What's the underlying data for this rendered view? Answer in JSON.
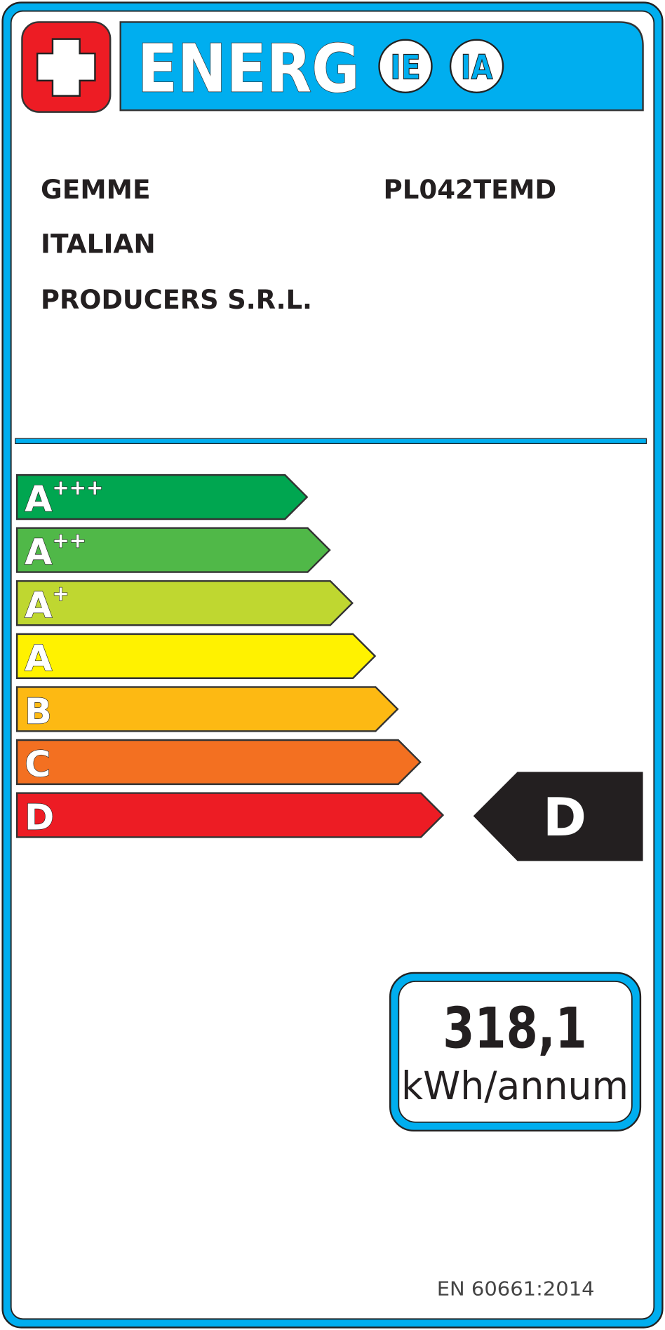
{
  "header": {
    "logo_icon": "swiss-cross-icon",
    "title": "ENERG",
    "badges": [
      "IE",
      "IA"
    ]
  },
  "supplier": {
    "lines": [
      "GEMME",
      "ITALIAN",
      "PRODUCERS S.R.L."
    ],
    "model": "PL042TEMD"
  },
  "scale": {
    "classes": [
      {
        "letter": "A",
        "sup": "+++",
        "color": "#00a650"
      },
      {
        "letter": "A",
        "sup": "++",
        "color": "#50b848"
      },
      {
        "letter": "A",
        "sup": "+",
        "color": "#bfd730"
      },
      {
        "letter": "A",
        "sup": "",
        "color": "#fff200"
      },
      {
        "letter": "B",
        "sup": "",
        "color": "#fdb913"
      },
      {
        "letter": "C",
        "sup": "",
        "color": "#f37021"
      },
      {
        "letter": "D",
        "sup": "",
        "color": "#ed1c24"
      }
    ],
    "rating": "D"
  },
  "consumption": {
    "value": "318,1",
    "unit": "kWh/annum"
  },
  "standard": "EN 60661:2014",
  "colors": {
    "frame": "#00aeef",
    "logo": "#ed1c24",
    "pointer": "#231f20"
  }
}
